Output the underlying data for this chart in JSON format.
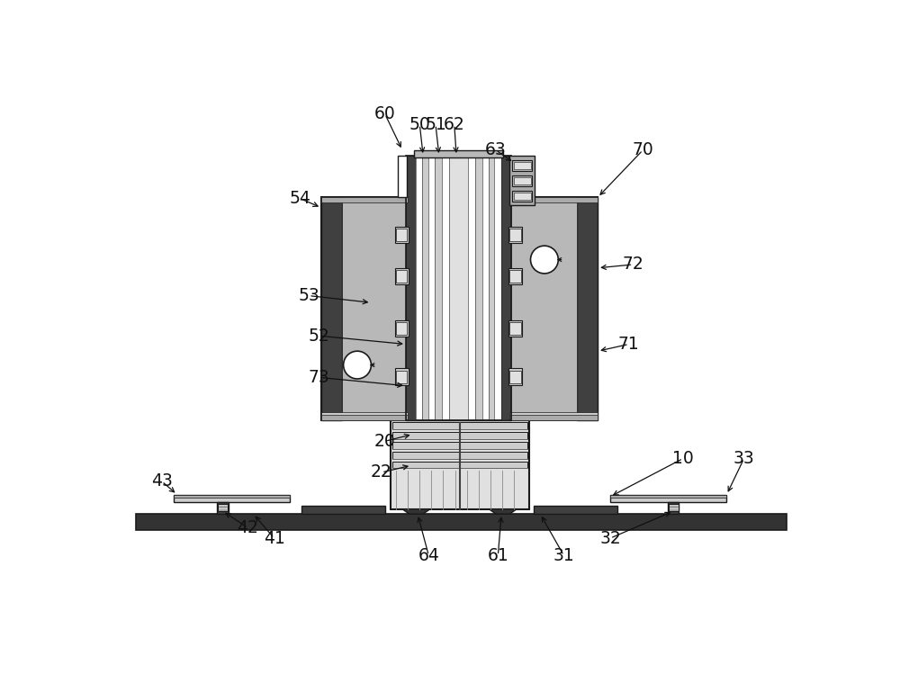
{
  "bg_color": "#ffffff",
  "lc": "#1a1a1a",
  "dg": "#404040",
  "dg2": "#333333",
  "mg": "#888888",
  "lg": "#b8b8b8",
  "llg": "#cccccc",
  "vlg": "#e0e0e0",
  "slv": "#aaaaaa",
  "wh": "#ffffff",
  "col_stripe_dark": "#999999",
  "col_stripe_light": "#ebebeb"
}
